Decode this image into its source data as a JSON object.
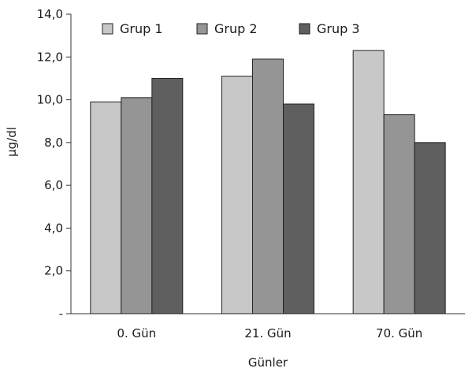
{
  "chart_data": {
    "type": "bar",
    "categories": [
      "0. Gün",
      "21. Gün",
      "70. Gün"
    ],
    "series": [
      {
        "name": "Grup 1",
        "color": "#c8c8c8",
        "values": [
          9.9,
          11.1,
          12.3
        ]
      },
      {
        "name": "Grup 2",
        "color": "#959595",
        "values": [
          10.1,
          11.9,
          9.3
        ]
      },
      {
        "name": "Grup 3",
        "color": "#5f5f5f",
        "values": [
          11.0,
          9.8,
          8.0
        ]
      }
    ],
    "ylim": [
      0,
      14
    ],
    "yticks": [
      {
        "value": 0,
        "label": "-"
      },
      {
        "value": 2,
        "label": "2,0"
      },
      {
        "value": 4,
        "label": "4,0"
      },
      {
        "value": 6,
        "label": "6,0"
      },
      {
        "value": 8,
        "label": "8,0"
      },
      {
        "value": 10,
        "label": "10,0"
      },
      {
        "value": 12,
        "label": "12,0"
      },
      {
        "value": 14,
        "label": "14,0"
      }
    ],
    "xlabel": "Günler",
    "ylabel": "µg/dl",
    "legend_position": "top",
    "grid": false
  }
}
